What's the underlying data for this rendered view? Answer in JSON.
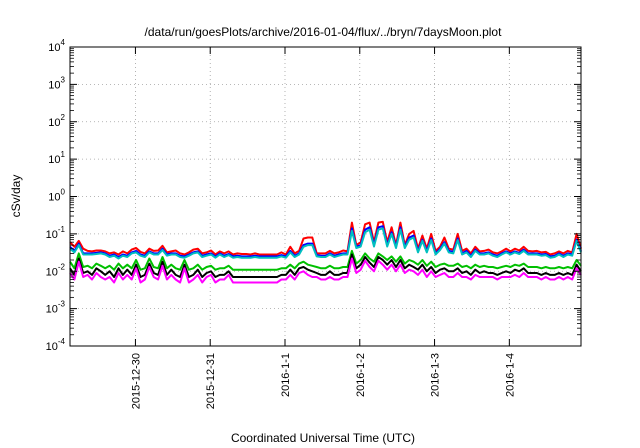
{
  "chart_data": {
    "type": "line",
    "title": "/data/run/goesPlots/archive/2016-01-04/flux/../bryn/7daysMoon.plot",
    "xlabel": "Coordinated Universal Time (UTC)",
    "ylabel": "cSv/day",
    "yscale": "log",
    "ylim": [
      0.0001,
      10000
    ],
    "xlim": [
      "2015-12-29T03:00",
      "2016-01-04T23:00"
    ],
    "grid": true,
    "y_ticks": [
      {
        "base": "10",
        "exp": "-4"
      },
      {
        "base": "10",
        "exp": "-3"
      },
      {
        "base": "10",
        "exp": "-2"
      },
      {
        "base": "10",
        "exp": "-1"
      },
      {
        "base": "10",
        "exp": "0"
      },
      {
        "base": "10",
        "exp": "1"
      },
      {
        "base": "10",
        "exp": "2"
      },
      {
        "base": "10",
        "exp": "3"
      },
      {
        "base": "10",
        "exp": "4"
      }
    ],
    "x_ticks": [
      "2015-12-30",
      "2015-12-31",
      "2016-1-1",
      "2016-1-2",
      "2016-1-3",
      "2016-1-4"
    ],
    "x_tick_dates": [
      "2015-12-30",
      "2015-12-31",
      "2016-01-01",
      "2016-01-02",
      "2016-01-03",
      "2016-01-04"
    ],
    "series": [
      {
        "color": "#ff0000",
        "y": [
          0.06,
          0.045,
          0.065,
          0.04,
          0.035,
          0.034,
          0.036,
          0.036,
          0.034,
          0.03,
          0.032,
          0.028,
          0.034,
          0.03,
          0.038,
          0.042,
          0.033,
          0.03,
          0.04,
          0.035,
          0.036,
          0.048,
          0.032,
          0.034,
          0.036,
          0.03,
          0.028,
          0.032,
          0.038,
          0.04,
          0.03,
          0.032,
          0.036,
          0.028,
          0.034,
          0.03,
          0.034,
          0.028,
          0.03,
          0.029,
          0.029,
          0.028,
          0.03,
          0.028,
          0.028,
          0.028,
          0.028,
          0.028,
          0.032,
          0.028,
          0.045,
          0.03,
          0.035,
          0.075,
          0.08,
          0.08,
          0.03,
          0.03,
          0.03,
          0.035,
          0.03,
          0.032,
          0.036,
          0.034,
          0.2,
          0.05,
          0.06,
          0.18,
          0.2,
          0.06,
          0.2,
          0.21,
          0.06,
          0.15,
          0.05,
          0.2,
          0.05,
          0.1,
          0.12,
          0.04,
          0.09,
          0.04,
          0.1,
          0.035,
          0.045,
          0.08,
          0.04,
          0.038,
          0.1,
          0.035,
          0.04,
          0.03,
          0.045,
          0.034,
          0.035,
          0.038,
          0.032,
          0.03,
          0.034,
          0.04,
          0.034,
          0.04,
          0.036,
          0.045,
          0.035,
          0.034,
          0.035,
          0.032,
          0.033,
          0.028,
          0.03,
          0.034,
          0.03,
          0.035,
          0.032,
          0.1,
          0.04
        ]
      },
      {
        "color": "#0000ff",
        "y": [
          0.045,
          0.035,
          0.055,
          0.03,
          0.03,
          0.03,
          0.031,
          0.032,
          0.03,
          0.026,
          0.028,
          0.024,
          0.028,
          0.026,
          0.032,
          0.035,
          0.028,
          0.026,
          0.034,
          0.03,
          0.03,
          0.04,
          0.028,
          0.03,
          0.03,
          0.026,
          0.025,
          0.028,
          0.032,
          0.034,
          0.026,
          0.028,
          0.03,
          0.025,
          0.03,
          0.026,
          0.029,
          0.025,
          0.026,
          0.025,
          0.025,
          0.025,
          0.026,
          0.025,
          0.025,
          0.025,
          0.025,
          0.025,
          0.027,
          0.025,
          0.035,
          0.026,
          0.03,
          0.05,
          0.055,
          0.055,
          0.027,
          0.026,
          0.026,
          0.03,
          0.026,
          0.028,
          0.03,
          0.03,
          0.14,
          0.045,
          0.05,
          0.13,
          0.15,
          0.05,
          0.15,
          0.16,
          0.05,
          0.11,
          0.045,
          0.15,
          0.045,
          0.08,
          0.09,
          0.035,
          0.07,
          0.035,
          0.075,
          0.03,
          0.04,
          0.06,
          0.035,
          0.033,
          0.075,
          0.03,
          0.035,
          0.026,
          0.038,
          0.03,
          0.03,
          0.032,
          0.028,
          0.026,
          0.03,
          0.034,
          0.03,
          0.034,
          0.031,
          0.038,
          0.03,
          0.03,
          0.03,
          0.028,
          0.029,
          0.025,
          0.026,
          0.03,
          0.026,
          0.03,
          0.028,
          0.07,
          0.035
        ]
      },
      {
        "color": "#00bfbf",
        "y": [
          0.04,
          0.032,
          0.05,
          0.028,
          0.028,
          0.028,
          0.029,
          0.03,
          0.028,
          0.024,
          0.026,
          0.022,
          0.026,
          0.024,
          0.03,
          0.032,
          0.026,
          0.024,
          0.032,
          0.028,
          0.028,
          0.037,
          0.026,
          0.028,
          0.028,
          0.024,
          0.023,
          0.026,
          0.03,
          0.032,
          0.024,
          0.026,
          0.028,
          0.023,
          0.028,
          0.024,
          0.027,
          0.023,
          0.024,
          0.023,
          0.023,
          0.023,
          0.024,
          0.023,
          0.023,
          0.023,
          0.023,
          0.023,
          0.025,
          0.023,
          0.032,
          0.024,
          0.028,
          0.045,
          0.05,
          0.05,
          0.025,
          0.024,
          0.024,
          0.028,
          0.024,
          0.026,
          0.028,
          0.028,
          0.12,
          0.042,
          0.046,
          0.11,
          0.13,
          0.046,
          0.13,
          0.14,
          0.046,
          0.1,
          0.042,
          0.13,
          0.042,
          0.07,
          0.08,
          0.032,
          0.065,
          0.032,
          0.068,
          0.028,
          0.037,
          0.055,
          0.032,
          0.03,
          0.068,
          0.028,
          0.032,
          0.024,
          0.035,
          0.028,
          0.028,
          0.03,
          0.026,
          0.024,
          0.028,
          0.032,
          0.028,
          0.032,
          0.029,
          0.035,
          0.028,
          0.028,
          0.028,
          0.026,
          0.027,
          0.023,
          0.024,
          0.028,
          0.024,
          0.028,
          0.026,
          0.065,
          0.032
        ]
      },
      {
        "color": "#00c000",
        "y": [
          0.018,
          0.012,
          0.03,
          0.013,
          0.014,
          0.012,
          0.016,
          0.014,
          0.012,
          0.014,
          0.011,
          0.016,
          0.012,
          0.015,
          0.012,
          0.02,
          0.011,
          0.012,
          0.022,
          0.013,
          0.012,
          0.024,
          0.012,
          0.015,
          0.012,
          0.011,
          0.02,
          0.011,
          0.012,
          0.015,
          0.011,
          0.013,
          0.014,
          0.011,
          0.012,
          0.012,
          0.014,
          0.011,
          0.011,
          0.011,
          0.011,
          0.011,
          0.011,
          0.011,
          0.011,
          0.011,
          0.011,
          0.011,
          0.012,
          0.012,
          0.015,
          0.012,
          0.016,
          0.018,
          0.015,
          0.014,
          0.013,
          0.012,
          0.012,
          0.014,
          0.012,
          0.012,
          0.013,
          0.013,
          0.035,
          0.016,
          0.02,
          0.03,
          0.022,
          0.018,
          0.03,
          0.025,
          0.02,
          0.025,
          0.018,
          0.025,
          0.016,
          0.02,
          0.018,
          0.015,
          0.02,
          0.014,
          0.018,
          0.013,
          0.015,
          0.016,
          0.014,
          0.014,
          0.016,
          0.013,
          0.014,
          0.012,
          0.015,
          0.013,
          0.014,
          0.013,
          0.013,
          0.012,
          0.013,
          0.014,
          0.013,
          0.015,
          0.014,
          0.016,
          0.013,
          0.013,
          0.013,
          0.012,
          0.013,
          0.012,
          0.012,
          0.013,
          0.012,
          0.013,
          0.012,
          0.02,
          0.014
        ]
      },
      {
        "color": "#000000",
        "y": [
          0.012,
          0.008,
          0.022,
          0.009,
          0.01,
          0.008,
          0.012,
          0.01,
          0.008,
          0.01,
          0.007,
          0.012,
          0.008,
          0.011,
          0.008,
          0.015,
          0.007,
          0.008,
          0.016,
          0.009,
          0.008,
          0.018,
          0.008,
          0.011,
          0.008,
          0.007,
          0.015,
          0.007,
          0.008,
          0.011,
          0.007,
          0.009,
          0.01,
          0.007,
          0.008,
          0.008,
          0.01,
          0.007,
          0.007,
          0.007,
          0.007,
          0.007,
          0.007,
          0.007,
          0.007,
          0.007,
          0.007,
          0.007,
          0.008,
          0.008,
          0.011,
          0.008,
          0.012,
          0.013,
          0.011,
          0.01,
          0.009,
          0.008,
          0.008,
          0.01,
          0.008,
          0.008,
          0.009,
          0.009,
          0.028,
          0.012,
          0.015,
          0.024,
          0.017,
          0.013,
          0.024,
          0.02,
          0.015,
          0.02,
          0.013,
          0.02,
          0.012,
          0.015,
          0.013,
          0.011,
          0.015,
          0.01,
          0.013,
          0.009,
          0.011,
          0.012,
          0.01,
          0.01,
          0.012,
          0.009,
          0.01,
          0.008,
          0.011,
          0.009,
          0.01,
          0.009,
          0.009,
          0.008,
          0.009,
          0.01,
          0.009,
          0.011,
          0.01,
          0.012,
          0.009,
          0.009,
          0.009,
          0.008,
          0.009,
          0.008,
          0.008,
          0.009,
          0.008,
          0.009,
          0.008,
          0.015,
          0.01
        ]
      },
      {
        "color": "#ff00ff",
        "y": [
          0.009,
          0.006,
          0.018,
          0.007,
          0.008,
          0.006,
          0.009,
          0.007,
          0.006,
          0.007,
          0.005,
          0.009,
          0.006,
          0.008,
          0.006,
          0.012,
          0.005,
          0.006,
          0.013,
          0.007,
          0.006,
          0.014,
          0.006,
          0.008,
          0.006,
          0.005,
          0.012,
          0.005,
          0.006,
          0.008,
          0.005,
          0.007,
          0.008,
          0.005,
          0.006,
          0.006,
          0.008,
          0.005,
          0.005,
          0.005,
          0.005,
          0.005,
          0.005,
          0.005,
          0.005,
          0.005,
          0.005,
          0.005,
          0.006,
          0.006,
          0.008,
          0.006,
          0.009,
          0.01,
          0.008,
          0.007,
          0.007,
          0.006,
          0.006,
          0.007,
          0.006,
          0.006,
          0.007,
          0.007,
          0.022,
          0.009,
          0.011,
          0.019,
          0.013,
          0.01,
          0.019,
          0.015,
          0.011,
          0.015,
          0.01,
          0.015,
          0.009,
          0.011,
          0.01,
          0.008,
          0.011,
          0.007,
          0.01,
          0.007,
          0.008,
          0.009,
          0.007,
          0.007,
          0.009,
          0.007,
          0.007,
          0.006,
          0.008,
          0.007,
          0.007,
          0.007,
          0.007,
          0.006,
          0.007,
          0.007,
          0.007,
          0.008,
          0.007,
          0.009,
          0.007,
          0.007,
          0.007,
          0.006,
          0.007,
          0.006,
          0.006,
          0.007,
          0.006,
          0.007,
          0.006,
          0.012,
          0.008
        ]
      }
    ]
  }
}
